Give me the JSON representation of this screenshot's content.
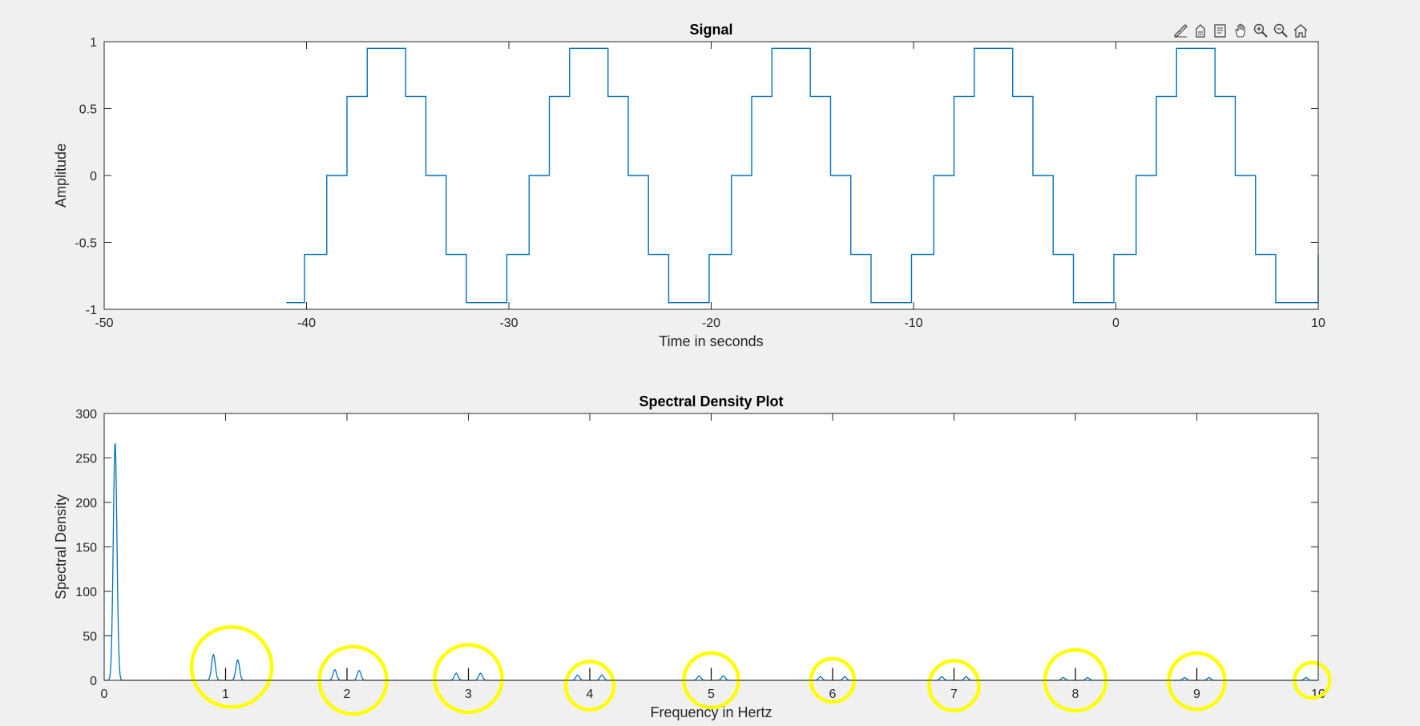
{
  "toolbar": [
    {
      "name": "brush-icon"
    },
    {
      "name": "data-tips-icon"
    },
    {
      "name": "export-icon"
    },
    {
      "name": "pan-icon"
    },
    {
      "name": "zoom-in-icon"
    },
    {
      "name": "zoom-out-icon"
    },
    {
      "name": "home-icon"
    }
  ],
  "colors": {
    "line": "#0072bd",
    "highlight": "#ffff00",
    "axes_bg": "#ffffff",
    "figure_bg": "#f0f0f0"
  },
  "chart_data": [
    {
      "type": "line",
      "title": "Signal",
      "xlabel": "Time in seconds",
      "ylabel": "Amplitude",
      "xlim": [
        -50,
        10
      ],
      "ylim": [
        -1,
        1
      ],
      "xticks": [
        -50,
        -40,
        -30,
        -20,
        -10,
        0,
        10
      ],
      "xtick_labels": [
        "-50",
        "-40",
        "-30",
        "-20",
        "-10",
        "0",
        "10"
      ],
      "yticks": [
        -1,
        -0.5,
        0,
        0.5,
        1
      ],
      "ytick_labels": [
        "-1",
        "-0.5",
        "0",
        "0.5",
        "1"
      ],
      "grid": false,
      "series": [
        {
          "description": "staircase sinusoid, period 10 s, levels ±0.95, ±0.59, 0",
          "x": [
            -41,
            -40.1,
            -40.1,
            -39,
            -39,
            -38,
            -38,
            -37,
            -37,
            -35.1,
            -35.1,
            -34.1,
            -34.1,
            -33.1,
            -33.1,
            -32.1,
            -32.1,
            -30.1,
            -30.1,
            -29,
            -29,
            -28,
            -28,
            -27,
            -27,
            -25.1,
            -25.1,
            -24.1,
            -24.1,
            -23.1,
            -23.1,
            -22.1,
            -22.1,
            -20.1,
            -20.1,
            -19,
            -19,
            -18,
            -18,
            -17,
            -17,
            -15.1,
            -15.1,
            -14.1,
            -14.1,
            -13.1,
            -13.1,
            -12.1,
            -12.1,
            -10.1,
            -10.1,
            -9,
            -9,
            -8,
            -8,
            -7,
            -7,
            -5.1,
            -5.1,
            -4.1,
            -4.1,
            -3.1,
            -3.1,
            -2.1,
            -2.1,
            -0.1,
            -0.1,
            1,
            1,
            2,
            2,
            3,
            3,
            4.9,
            4.9,
            5.9,
            5.9,
            6.9,
            6.9,
            7.9,
            7.9,
            10,
            10
          ],
          "y": [
            -0.95,
            -0.95,
            -0.59,
            -0.59,
            0,
            0,
            0.59,
            0.59,
            0.95,
            0.95,
            0.59,
            0.59,
            0,
            0,
            -0.59,
            -0.59,
            -0.95,
            -0.95,
            -0.59,
            -0.59,
            0,
            0,
            0.59,
            0.59,
            0.95,
            0.95,
            0.59,
            0.59,
            0,
            0,
            -0.59,
            -0.59,
            -0.95,
            -0.95,
            -0.59,
            -0.59,
            0,
            0,
            0.59,
            0.59,
            0.95,
            0.95,
            0.59,
            0.59,
            0,
            0,
            -0.59,
            -0.59,
            -0.95,
            -0.95,
            -0.59,
            -0.59,
            0,
            0,
            0.59,
            0.59,
            0.95,
            0.95,
            0.59,
            0.59,
            0,
            0,
            -0.59,
            -0.59,
            -0.95,
            -0.95,
            -0.59,
            -0.59,
            0,
            0,
            0.59,
            0.59,
            0.95,
            0.95,
            0.59,
            0.59,
            0,
            0,
            -0.59,
            -0.59,
            -0.95,
            -0.95,
            -0.59
          ]
        }
      ]
    },
    {
      "type": "line",
      "title": "Spectral Density Plot",
      "xlabel": "Frequency in Hertz",
      "ylabel": "Spectral Density",
      "xlim": [
        0,
        10
      ],
      "ylim": [
        0,
        300
      ],
      "xticks": [
        0,
        1,
        2,
        3,
        4,
        5,
        6,
        7,
        8,
        9,
        10
      ],
      "xtick_labels": [
        "0",
        "1",
        "2",
        "3",
        "4",
        "5",
        "6",
        "7",
        "8",
        "9",
        "10"
      ],
      "yticks": [
        0,
        50,
        100,
        150,
        200,
        250,
        300
      ],
      "ytick_labels": [
        "0",
        "50",
        "100",
        "150",
        "200",
        "250",
        "300"
      ],
      "grid": false,
      "peaks": [
        {
          "f": 0.09,
          "value": 268,
          "width": 0.03
        },
        {
          "f": 0.9,
          "value": 29,
          "width": 0.03
        },
        {
          "f": 1.1,
          "value": 23,
          "width": 0.03
        },
        {
          "f": 1.9,
          "value": 12,
          "width": 0.03
        },
        {
          "f": 2.1,
          "value": 11,
          "width": 0.03
        },
        {
          "f": 2.9,
          "value": 8,
          "width": 0.03
        },
        {
          "f": 3.1,
          "value": 8,
          "width": 0.03
        },
        {
          "f": 3.9,
          "value": 6,
          "width": 0.03
        },
        {
          "f": 4.1,
          "value": 6,
          "width": 0.03
        },
        {
          "f": 4.9,
          "value": 5,
          "width": 0.03
        },
        {
          "f": 5.1,
          "value": 5,
          "width": 0.03
        },
        {
          "f": 5.9,
          "value": 4,
          "width": 0.03
        },
        {
          "f": 6.1,
          "value": 4,
          "width": 0.03
        },
        {
          "f": 6.9,
          "value": 4,
          "width": 0.03
        },
        {
          "f": 7.1,
          "value": 4,
          "width": 0.03
        },
        {
          "f": 7.9,
          "value": 3,
          "width": 0.03
        },
        {
          "f": 8.1,
          "value": 3,
          "width": 0.03
        },
        {
          "f": 8.9,
          "value": 3,
          "width": 0.03
        },
        {
          "f": 9.1,
          "value": 3,
          "width": 0.03
        },
        {
          "f": 9.9,
          "value": 3,
          "width": 0.03
        }
      ],
      "tallticks_at": [
        1,
        2,
        3,
        4,
        5,
        6,
        7,
        8,
        9
      ],
      "highlight_circles": [
        {
          "f": 1.05,
          "v": 15
        },
        {
          "f": 2.05,
          "v": 0
        },
        {
          "f": 3.0,
          "v": 2
        },
        {
          "f": 4.0,
          "v": -6
        },
        {
          "f": 5.0,
          "v": 0
        },
        {
          "f": 6.0,
          "v": 0
        },
        {
          "f": 7.0,
          "v": -6
        },
        {
          "f": 8.0,
          "v": 0
        },
        {
          "f": 9.0,
          "v": -1
        },
        {
          "f": 9.95,
          "v": 0
        }
      ]
    }
  ]
}
